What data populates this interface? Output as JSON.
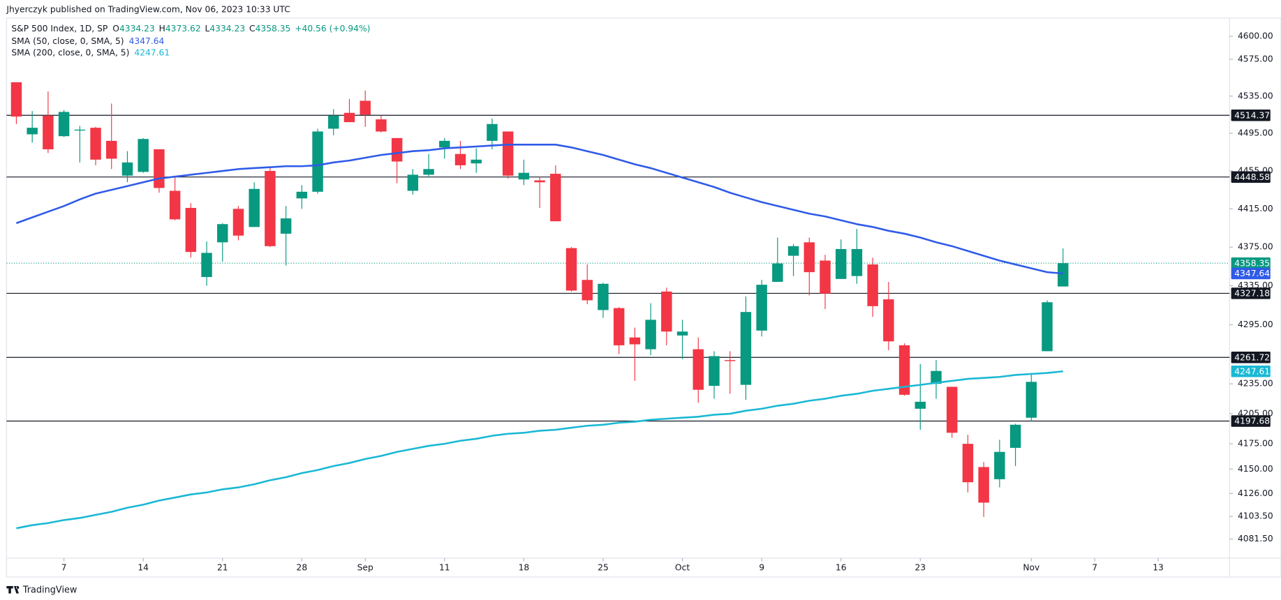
{
  "chart_data": {
    "type": "candlestick",
    "header": "Jhyerczyk published on TradingView.com, Nov 06, 2023 10:33 UTC",
    "title": "S&P 500 Index, 1D, SP",
    "ohlc_labels": [
      "O",
      "H",
      "L",
      "C"
    ],
    "change": "+40.56 (+0.94%)",
    "footer": "TradingView",
    "up_color": "#089981",
    "down_color": "#f23645",
    "open": [
      4550,
      4494,
      4514,
      4492,
      4498,
      4501,
      4487,
      4450,
      4454,
      4478,
      4434,
      4416,
      4344,
      4380,
      4415,
      4396,
      4455,
      4389,
      4426,
      4433,
      4500,
      4517,
      4530,
      4510,
      4490,
      4434,
      4451,
      4480,
      4473,
      4463,
      4487,
      4497,
      4446,
      4445,
      4452,
      4374,
      4341,
      4310,
      4312,
      4282,
      4270,
      4329,
      4284,
      4270,
      4233,
      4259,
      4234,
      4289,
      4339,
      4366,
      4380,
      4361,
      4342,
      4345,
      4357,
      4321,
      4274,
      4210,
      4235,
      4232,
      4175,
      4152,
      4140,
      4171,
      4201,
      4268,
      4334.23
    ],
    "high": [
      4550,
      4519,
      4540,
      4520,
      4503,
      4502,
      4527,
      4476,
      4490,
      4478,
      4449,
      4421,
      4381,
      4400,
      4418,
      4443,
      4458,
      4418,
      4440,
      4500,
      4521,
      4532,
      4541,
      4514,
      4490,
      4457,
      4473,
      4490,
      4487,
      4479,
      4511,
      4497,
      4467,
      4449,
      4461,
      4375,
      4357,
      4338,
      4313,
      4292,
      4317,
      4333,
      4300,
      4282,
      4268,
      4268,
      4324,
      4341,
      4385,
      4378,
      4385,
      4367,
      4383,
      4394,
      4364,
      4339,
      4276,
      4255,
      4259,
      4232,
      4184,
      4157,
      4179,
      4195,
      4246,
      4320,
      4373.62
    ],
    "low": [
      4505,
      4485,
      4474,
      4491,
      4464,
      4461,
      4457,
      4443,
      4453,
      4432,
      4403,
      4364,
      4335,
      4360,
      4382,
      4396,
      4375,
      4356,
      4415,
      4431,
      4493,
      4507,
      4502,
      4496,
      4442,
      4430,
      4448,
      4468,
      4457,
      4453,
      4478,
      4447,
      4440,
      4416,
      4402,
      4329,
      4316,
      4302,
      4265,
      4238,
      4264,
      4274,
      4260,
      4216,
      4220,
      4225,
      4219,
      4283,
      4339,
      4345,
      4325,
      4311,
      4342,
      4337,
      4303,
      4269,
      4223,
      4189,
      4220,
      4181,
      4127,
      4103,
      4132,
      4153,
      4197,
      4268,
      4334.23
    ],
    "close": [
      4513,
      4501,
      4478,
      4518,
      4499,
      4467,
      4468,
      4464,
      4489,
      4437,
      4404,
      4370,
      4369,
      4399,
      4387,
      4436,
      4376,
      4405,
      4433,
      4497,
      4514,
      4507,
      4515,
      4497,
      4465,
      4451,
      4457,
      4487,
      4461,
      4467,
      4505,
      4450,
      4453,
      4443,
      4402,
      4330,
      4320,
      4337,
      4274,
      4275,
      4300,
      4288,
      4288,
      4229,
      4263,
      4258,
      4308,
      4336,
      4358,
      4376,
      4349,
      4327,
      4373,
      4373,
      4314,
      4278,
      4224,
      4217,
      4248,
      4186,
      4137,
      4117,
      4167,
      4194,
      4237,
      4318,
      4358.35
    ],
    "series": [
      {
        "name": "SMA (50, close, 0, SMA, 5)",
        "color": "#2f5be8",
        "values": [
          4400,
          4406,
          4412,
          4418,
          4425,
          4431,
          4435,
          4439,
          4443,
          4447,
          4449,
          4451,
          4453,
          4455,
          4457,
          4458,
          4459,
          4460,
          4460,
          4461,
          4464,
          4466,
          4469,
          4472,
          4474,
          4476,
          4477,
          4479,
          4480,
          4481,
          4482,
          4483,
          4483,
          4483,
          4483,
          4480,
          4476,
          4472,
          4467,
          4462,
          4458,
          4453,
          4448,
          4443,
          4438,
          4432,
          4427,
          4422,
          4418,
          4414,
          4410,
          4407,
          4403,
          4399,
          4396,
          4392,
          4389,
          4385,
          4380,
          4376,
          4371,
          4366,
          4361,
          4357,
          4353,
          4349,
          4347.64
        ]
      },
      {
        "name": "SMA (200, close, 0, SMA, 5)",
        "color": "#1ab8d4",
        "values": [
          4092,
          4095,
          4097,
          4100,
          4102,
          4105,
          4108,
          4112,
          4115,
          4119,
          4122,
          4125,
          4127,
          4130,
          4132,
          4135,
          4139,
          4142,
          4146,
          4149,
          4153,
          4156,
          4160,
          4163,
          4167,
          4170,
          4173,
          4175,
          4178,
          4180,
          4183,
          4185,
          4186,
          4188,
          4189,
          4191,
          4193,
          4194,
          4196,
          4197,
          4199,
          4200,
          4201,
          4202,
          4204,
          4205,
          4208,
          4210,
          4213,
          4215,
          4218,
          4220,
          4223,
          4225,
          4228,
          4230,
          4232,
          4234,
          4236,
          4238,
          4240,
          4241,
          4242,
          4244,
          4245,
          4246,
          4247.61
        ]
      }
    ],
    "levels": [
      4514.37,
      4448.58,
      4327.18,
      4261.72,
      4197.68
    ],
    "level_color": "#131722",
    "xlim": [
      -0.62,
      76.5
    ],
    "xticks": [
      {
        "value": 3,
        "label": "7"
      },
      {
        "value": 8,
        "label": "14"
      },
      {
        "value": 13,
        "label": "21"
      },
      {
        "value": 18,
        "label": "28"
      },
      {
        "value": 22,
        "label": "Sep"
      },
      {
        "value": 27,
        "label": "11"
      },
      {
        "value": 32,
        "label": "18"
      },
      {
        "value": 37,
        "label": "25"
      },
      {
        "value": 42,
        "label": "Oct"
      },
      {
        "value": 47,
        "label": "9"
      },
      {
        "value": 52,
        "label": "16"
      },
      {
        "value": 57,
        "label": "23"
      },
      {
        "value": 64,
        "label": "Nov"
      },
      {
        "value": 68,
        "label": "7"
      },
      {
        "value": 72,
        "label": "13"
      }
    ],
    "ylim": [
      4063,
      4620
    ],
    "log_scale": true,
    "grid": false,
    "yticks": [
      {
        "value": 4600,
        "label": "4600.00"
      },
      {
        "value": 4575,
        "label": "4575.00"
      },
      {
        "value": 4535,
        "label": "4535.00"
      },
      {
        "value": 4495,
        "label": "4495.00"
      },
      {
        "value": 4455,
        "label": "4455.00"
      },
      {
        "value": 4415,
        "label": "4415.00"
      },
      {
        "value": 4375,
        "label": "4375.00"
      },
      {
        "value": 4335,
        "label": "4335.00"
      },
      {
        "value": 4295,
        "label": "4295.00"
      },
      {
        "value": 4235,
        "label": "4235.00"
      },
      {
        "value": 4205,
        "label": "4205.00"
      },
      {
        "value": 4175,
        "label": "4175.00"
      },
      {
        "value": 4150,
        "label": "4150.00"
      },
      {
        "value": 4126,
        "label": "4126.00"
      },
      {
        "value": 4103.5,
        "label": "4103.50"
      },
      {
        "value": 4081.5,
        "label": "4081.50"
      }
    ]
  }
}
